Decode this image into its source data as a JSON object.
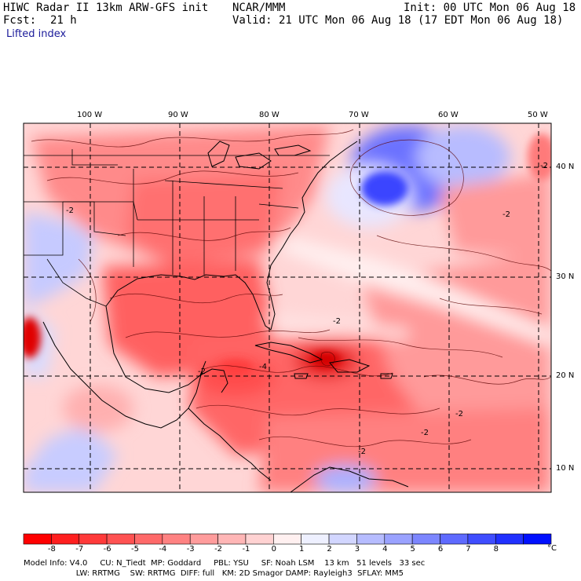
{
  "header": {
    "title": "HIWC Radar II 13km ARW-GFS init",
    "org": "NCAR/MMM",
    "init": "Init: 00 UTC Mon 06 Aug 18",
    "fcst_label": "Fcst:",
    "fcst_value": "21 h",
    "valid": "Valid: 21 UTC Mon 06 Aug 18 (17 EDT Mon 06 Aug 18)",
    "field": "Lifted index"
  },
  "map": {
    "lon_labels": [
      "100 W",
      "90 W",
      "80 W",
      "70 W",
      "60 W",
      "50 W"
    ],
    "lat_labels": [
      "40 N",
      "30 N",
      "20 N",
      "10 N"
    ],
    "contour_labels": [
      "-2",
      "-2",
      "-2",
      "-4",
      "-2",
      "-2",
      "-2",
      "-2",
      "-2"
    ]
  },
  "colorbar": {
    "labels": [
      "-8",
      "-7",
      "-6",
      "-5",
      "-4",
      "-3",
      "-2",
      "-1",
      "0",
      "1",
      "2",
      "3",
      "4",
      "5",
      "6",
      "7",
      "8"
    ],
    "unit": "°C",
    "colors": [
      "#ff0000",
      "#ff1f1f",
      "#ff3a3a",
      "#ff5252",
      "#ff6969",
      "#ff8282",
      "#ff9c9c",
      "#ffb6b6",
      "#ffd2d2",
      "#fff0f0",
      "#eef0ff",
      "#d2d6ff",
      "#b6bcff",
      "#9aa2ff",
      "#7c86ff",
      "#5e6aff",
      "#3f4dff",
      "#2030ff",
      "#0010ff"
    ]
  },
  "footer": {
    "line1": "Model Info: V4.0     CU: N_Tiedt  MP: Goddard     PBL: YSU     SF: Noah LSM    13 km   51 levels   33 sec",
    "line2": "                     LW: RRTMG    SW: RRTMG  DIFF: full   KM: 2D Smagor DAMP: Rayleigh3  SFLAY: MM5"
  }
}
